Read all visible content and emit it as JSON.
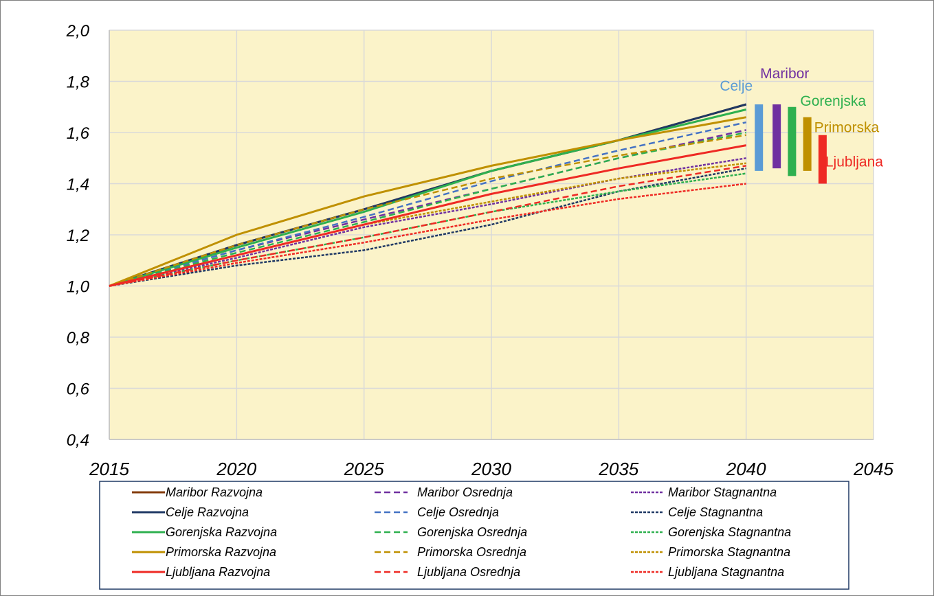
{
  "chart_data": {
    "type": "line",
    "title": "",
    "xlabel": "",
    "ylabel": "",
    "x": [
      2015,
      2020,
      2025,
      2030,
      2035,
      2040
    ],
    "xlim": [
      2015,
      2045
    ],
    "ylim": [
      0.4,
      2.0
    ],
    "x_ticks": [
      2015,
      2020,
      2025,
      2030,
      2035,
      2040,
      2045
    ],
    "x_tick_labels": [
      "2015",
      "2020",
      "2025",
      "2030",
      "2035",
      "2040",
      "2045"
    ],
    "y_ticks": [
      0.4,
      0.6,
      0.8,
      1.0,
      1.2,
      1.4,
      1.6,
      1.8,
      2.0
    ],
    "y_tick_labels": [
      "0,4",
      "0,6",
      "0,8",
      "1,0",
      "1,2",
      "1,4",
      "1,6",
      "1,8",
      "2,0"
    ],
    "grid": true,
    "plot_background": "#fbf3c9",
    "legend_position": "bottom",
    "series": [
      {
        "name": "Maribor Razvojna",
        "color": "#843c0c",
        "dash": "solid",
        "values": [
          1.0,
          1.16,
          1.3,
          1.45,
          1.57,
          1.71
        ]
      },
      {
        "name": "Maribor Osrednja",
        "color": "#7030a0",
        "dash": "dashed",
        "values": [
          1.0,
          1.14,
          1.26,
          1.38,
          1.5,
          1.61
        ]
      },
      {
        "name": "Maribor Stagnantna",
        "color": "#7030a0",
        "dash": "dotted",
        "values": [
          1.0,
          1.11,
          1.23,
          1.32,
          1.42,
          1.5
        ]
      },
      {
        "name": "Celje Razvojna",
        "color": "#1f3864",
        "dash": "solid",
        "values": [
          1.0,
          1.16,
          1.3,
          1.45,
          1.57,
          1.71
        ]
      },
      {
        "name": "Celje Osrednja",
        "color": "#4472c4",
        "dash": "dashed",
        "values": [
          1.0,
          1.14,
          1.27,
          1.41,
          1.53,
          1.64
        ]
      },
      {
        "name": "Celje Stagnantna",
        "color": "#1f3864",
        "dash": "dotted",
        "values": [
          1.0,
          1.08,
          1.14,
          1.24,
          1.37,
          1.46
        ]
      },
      {
        "name": "Gorenjska Razvojna",
        "color": "#2eb04f",
        "dash": "solid",
        "values": [
          1.0,
          1.15,
          1.29,
          1.45,
          1.57,
          1.69
        ]
      },
      {
        "name": "Gorenjska Osrednja",
        "color": "#2eb04f",
        "dash": "dashed",
        "values": [
          1.0,
          1.13,
          1.25,
          1.38,
          1.5,
          1.6
        ]
      },
      {
        "name": "Gorenjska Stagnantna",
        "color": "#2eb04f",
        "dash": "dotted",
        "values": [
          1.0,
          1.1,
          1.19,
          1.29,
          1.37,
          1.44
        ]
      },
      {
        "name": "Primorska Razvojna",
        "color": "#bf9000",
        "dash": "solid",
        "values": [
          1.0,
          1.2,
          1.35,
          1.47,
          1.57,
          1.66
        ]
      },
      {
        "name": "Primorska Osrednja",
        "color": "#bf9000",
        "dash": "dashed",
        "values": [
          1.0,
          1.16,
          1.3,
          1.42,
          1.51,
          1.59
        ]
      },
      {
        "name": "Primorska Stagnantna",
        "color": "#bf9000",
        "dash": "dotted",
        "values": [
          1.0,
          1.12,
          1.24,
          1.33,
          1.42,
          1.48
        ]
      },
      {
        "name": "Ljubljana Razvojna",
        "color": "#ee2a24",
        "dash": "solid",
        "values": [
          1.0,
          1.12,
          1.24,
          1.36,
          1.46,
          1.55
        ]
      },
      {
        "name": "Ljubljana Osrednja",
        "color": "#ee2a24",
        "dash": "dashed",
        "values": [
          1.0,
          1.1,
          1.19,
          1.29,
          1.39,
          1.47
        ]
      },
      {
        "name": "Ljubljana Stagnantna",
        "color": "#ee2a24",
        "dash": "dotted",
        "values": [
          1.0,
          1.09,
          1.17,
          1.26,
          1.34,
          1.4
        ]
      }
    ],
    "range_bars": [
      {
        "label": "Celje",
        "color": "#5b9bd5",
        "x": 2040.5,
        "y_min": 1.45,
        "y_max": 1.71
      },
      {
        "label": "Maribor",
        "color": "#7030a0",
        "x": 2041.2,
        "y_min": 1.46,
        "y_max": 1.71
      },
      {
        "label": "Gorenjska",
        "color": "#2eb04f",
        "x": 2041.8,
        "y_min": 1.43,
        "y_max": 1.7
      },
      {
        "label": "Primorska",
        "color": "#bf9000",
        "x": 2042.4,
        "y_min": 1.45,
        "y_max": 1.66
      },
      {
        "label": "Ljubljana",
        "color": "#ee2a24",
        "x": 2043.0,
        "y_min": 1.4,
        "y_max": 1.59
      }
    ]
  }
}
